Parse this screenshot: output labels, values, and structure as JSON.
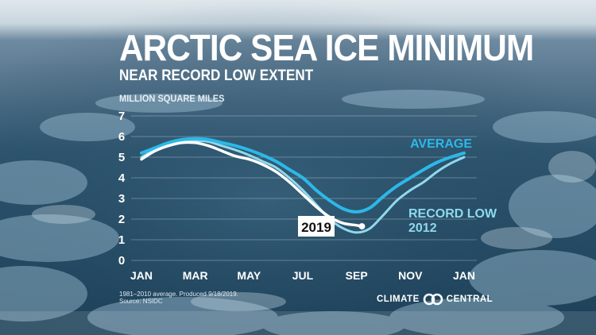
{
  "title": "ARCTIC SEA ICE MINIMUM",
  "subtitle": "NEAR RECORD LOW EXTENT",
  "footnote_lines": [
    "1981–2010 average. Produced 9/18/2019.",
    "Source: NSIDC"
  ],
  "logo": {
    "left_text": "CLIMATE",
    "right_text": "CENTRAL",
    "icon": "climate-central-logo-icon"
  },
  "colors": {
    "average": "#2cb8e8",
    "record_low": "#8fd9ee",
    "year_2019": "#ffffff",
    "text": "#ffffff"
  },
  "chart_data": {
    "type": "line",
    "ylabel": "MILLION SQUARE MILES",
    "ylim": [
      0,
      7
    ],
    "yticks": [
      "0",
      "1",
      "2",
      "3",
      "4",
      "5",
      "6",
      "7"
    ],
    "x_ticks": [
      {
        "label": "JAN",
        "month": 1
      },
      {
        "label": "MAR",
        "month": 3
      },
      {
        "label": "MAY",
        "month": 5
      },
      {
        "label": "JUL",
        "month": 7
      },
      {
        "label": "SEP",
        "month": 9
      },
      {
        "label": "NOV",
        "month": 11
      },
      {
        "label": "JAN",
        "month": 13
      }
    ],
    "grid": true,
    "series": [
      {
        "name": "AVERAGE",
        "label_lines": [
          "AVERAGE"
        ],
        "color": "#2cb8e8",
        "x": [
          1,
          1.5,
          2,
          2.5,
          3,
          3.5,
          4,
          4.5,
          5,
          5.5,
          6,
          6.5,
          7,
          7.5,
          8,
          8.5,
          9,
          9.5,
          10,
          10.5,
          11,
          11.5,
          12,
          12.5,
          13
        ],
        "y": [
          5.2,
          5.45,
          5.7,
          5.85,
          5.9,
          5.85,
          5.7,
          5.55,
          5.35,
          5.1,
          4.8,
          4.4,
          4.0,
          3.4,
          2.9,
          2.5,
          2.35,
          2.55,
          3.1,
          3.6,
          4.0,
          4.4,
          4.75,
          5.0,
          5.2
        ]
      },
      {
        "name": "RECORD LOW 2012",
        "label_lines": [
          "RECORD LOW",
          "2012"
        ],
        "color": "#8fd9ee",
        "x": [
          1,
          1.5,
          2,
          2.5,
          3,
          3.5,
          4,
          4.5,
          5,
          5.5,
          6,
          6.5,
          7,
          7.5,
          8,
          8.5,
          9,
          9.5,
          10,
          10.5,
          11,
          11.5,
          12,
          12.5,
          13
        ],
        "y": [
          5.0,
          5.35,
          5.6,
          5.75,
          5.8,
          5.75,
          5.55,
          5.35,
          5.1,
          4.8,
          4.5,
          4.0,
          3.4,
          2.7,
          2.0,
          1.55,
          1.35,
          1.55,
          2.2,
          2.9,
          3.4,
          3.8,
          4.3,
          4.7,
          5.0
        ]
      },
      {
        "name": "2019",
        "label_lines": [
          "2019"
        ],
        "color": "#ffffff",
        "x": [
          1,
          1.5,
          2,
          2.5,
          3,
          3.5,
          4,
          4.5,
          5,
          5.5,
          6,
          6.5,
          7,
          7.5,
          8,
          8.5,
          9,
          9.2
        ],
        "y": [
          4.9,
          5.3,
          5.55,
          5.7,
          5.7,
          5.55,
          5.3,
          5.05,
          4.9,
          4.65,
          4.3,
          3.8,
          3.2,
          2.6,
          2.1,
          1.8,
          1.7,
          1.65
        ]
      }
    ]
  }
}
